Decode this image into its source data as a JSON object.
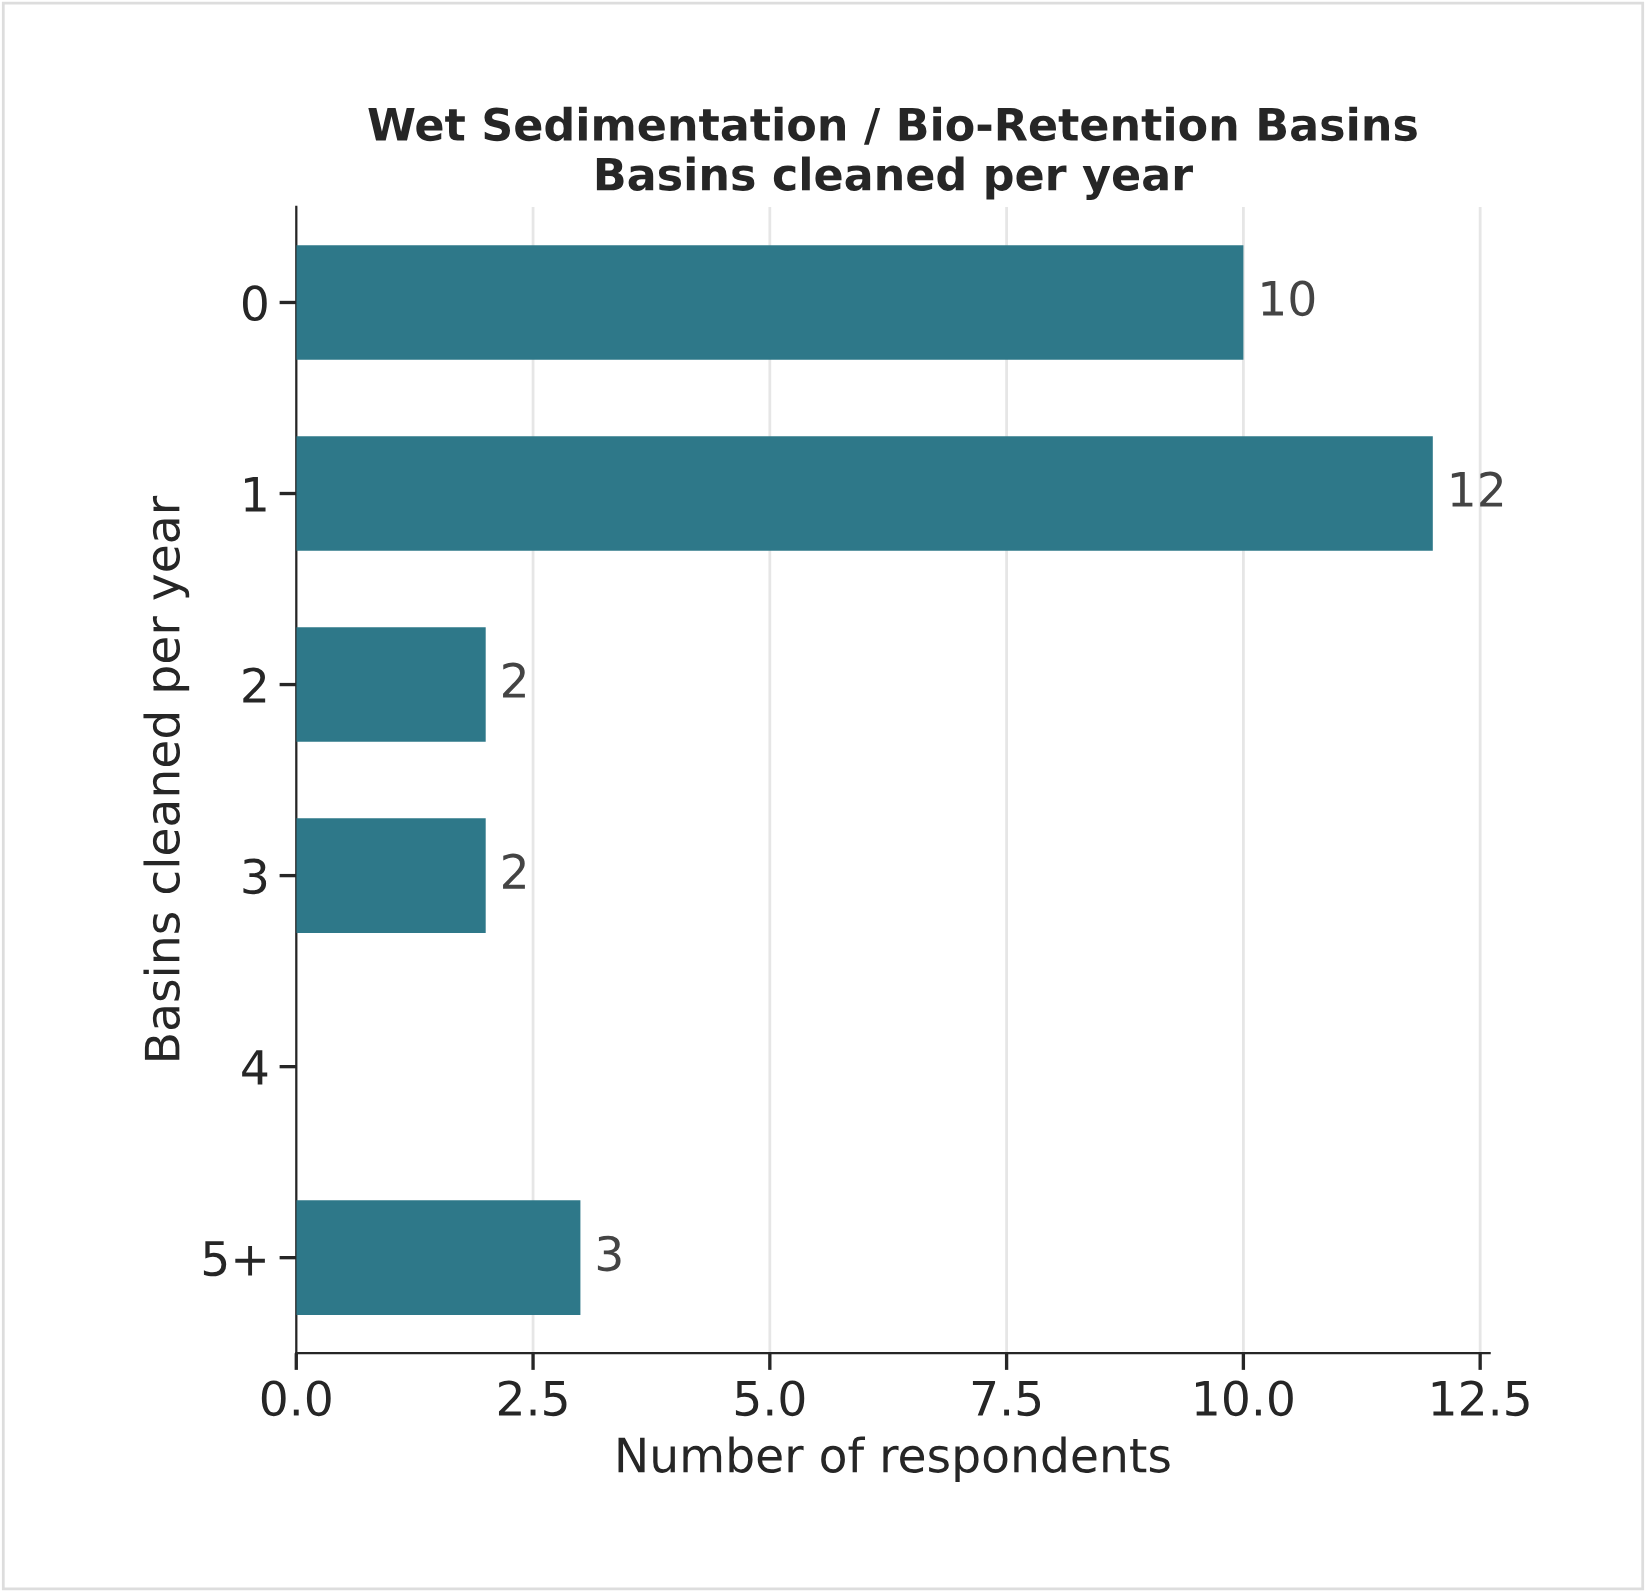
{
  "chart_data": {
    "type": "bar",
    "orientation": "horizontal",
    "title": "Wet Sedimentation / Bio-Retention Basins\nBasins cleaned per year",
    "xlabel": "Number of respondents",
    "ylabel": "Basins cleaned per year",
    "categories": [
      "0",
      "1",
      "2",
      "3",
      "4",
      "5+"
    ],
    "values": [
      10,
      12,
      2,
      2,
      0,
      3
    ],
    "value_labels": [
      "10",
      "12",
      "2",
      "2",
      null,
      "3"
    ],
    "color": "#2e7889",
    "xlim": [
      0,
      12.6
    ],
    "xticks": [
      {
        "value": 0,
        "label": "0.0"
      },
      {
        "value": 2.5,
        "label": "2.5"
      },
      {
        "value": 5,
        "label": "5.0"
      },
      {
        "value": 7.5,
        "label": "7.5"
      },
      {
        "value": 10,
        "label": "10.0"
      },
      {
        "value": 12.5,
        "label": "12.5"
      }
    ],
    "grid": "x",
    "legend": false
  }
}
